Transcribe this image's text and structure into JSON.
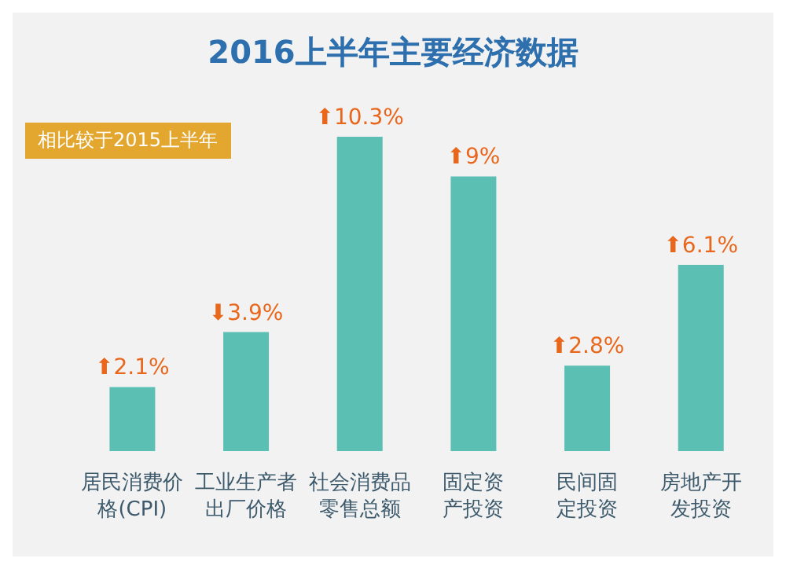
{
  "chart_data": {
    "type": "bar",
    "title": "2016上半年主要经济数据",
    "categories": [
      "居民消费价格(CPI)",
      "工业生产者出厂价格",
      "社会消费品零售总额",
      "固定资产投资",
      "民间固定投资",
      "房地产开发投资"
    ],
    "values": [
      2.1,
      3.9,
      10.3,
      9,
      2.8,
      6.1
    ],
    "value_labels": [
      "⬆2.1%",
      "⬇3.9%",
      "⬆10.3%",
      "⬆9%",
      "⬆2.8%",
      "⬆6.1%"
    ],
    "color": "#5bbfb3",
    "annotations": [
      "相比较于2015上半年"
    ]
  }
}
